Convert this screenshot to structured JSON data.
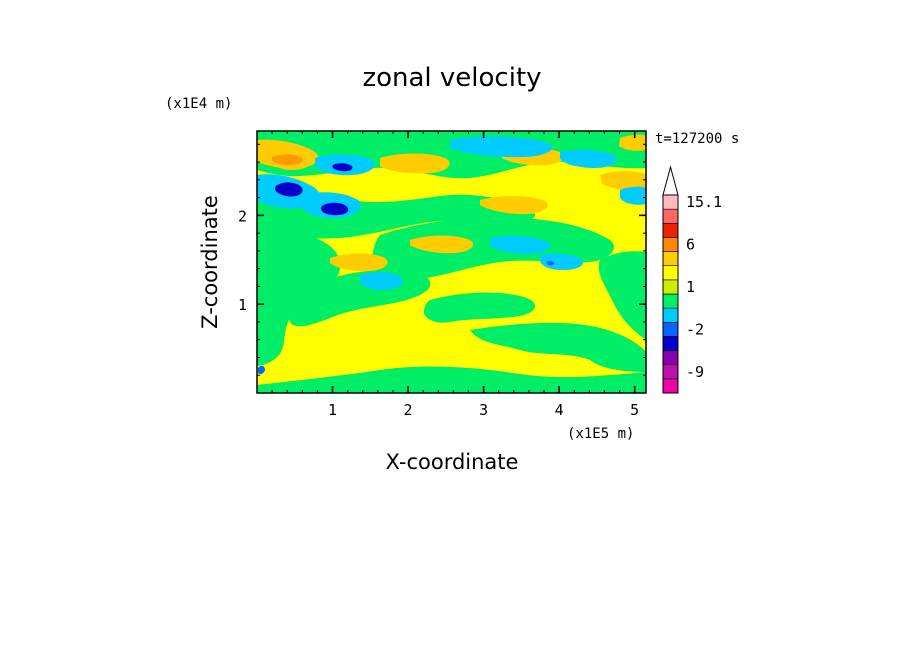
{
  "chart_data": {
    "type": "heatmap",
    "title": "zonal velocity",
    "xlabel": "X-coordinate",
    "ylabel": "Z-coordinate",
    "x_unit": "(x1E5 m)",
    "y_unit": "(x1E4 m)",
    "time_label": "t=127200 s",
    "xlim": [
      0,
      5.15
    ],
    "ylim": [
      0,
      2.95
    ],
    "xticks": [
      1,
      2,
      3,
      4,
      5
    ],
    "yticks": [
      1,
      2
    ],
    "colorbar": {
      "labels": [
        {
          "text": "15.1",
          "level": 15.1
        },
        {
          "text": "6",
          "level": 6
        },
        {
          "text": "1",
          "level": 1
        },
        {
          "text": "-2",
          "level": -2
        },
        {
          "text": "-9",
          "level": -9
        }
      ],
      "levels": [
        -12,
        -9,
        -6,
        -4,
        -2,
        -1,
        0,
        1,
        2,
        4,
        6,
        9,
        12,
        15.1
      ],
      "colors": [
        "#ee00aa",
        "#bb11aa",
        "#8800aa",
        "#0000cc",
        "#0066ff",
        "#00ccff",
        "#00ee66",
        "#ccee00",
        "#ffff00",
        "#ffcc00",
        "#ff8800",
        "#ee2200",
        "#ff6666",
        "#ffbbbb"
      ],
      "extend_arrow_color": "#ffffff"
    },
    "colors": {
      "background_field": "#ffff00",
      "green": "#00ee66",
      "cyan": "#00ccff",
      "orange": "#ffcc00",
      "darkorange": "#ff9900",
      "blue": "#0000cc"
    }
  }
}
